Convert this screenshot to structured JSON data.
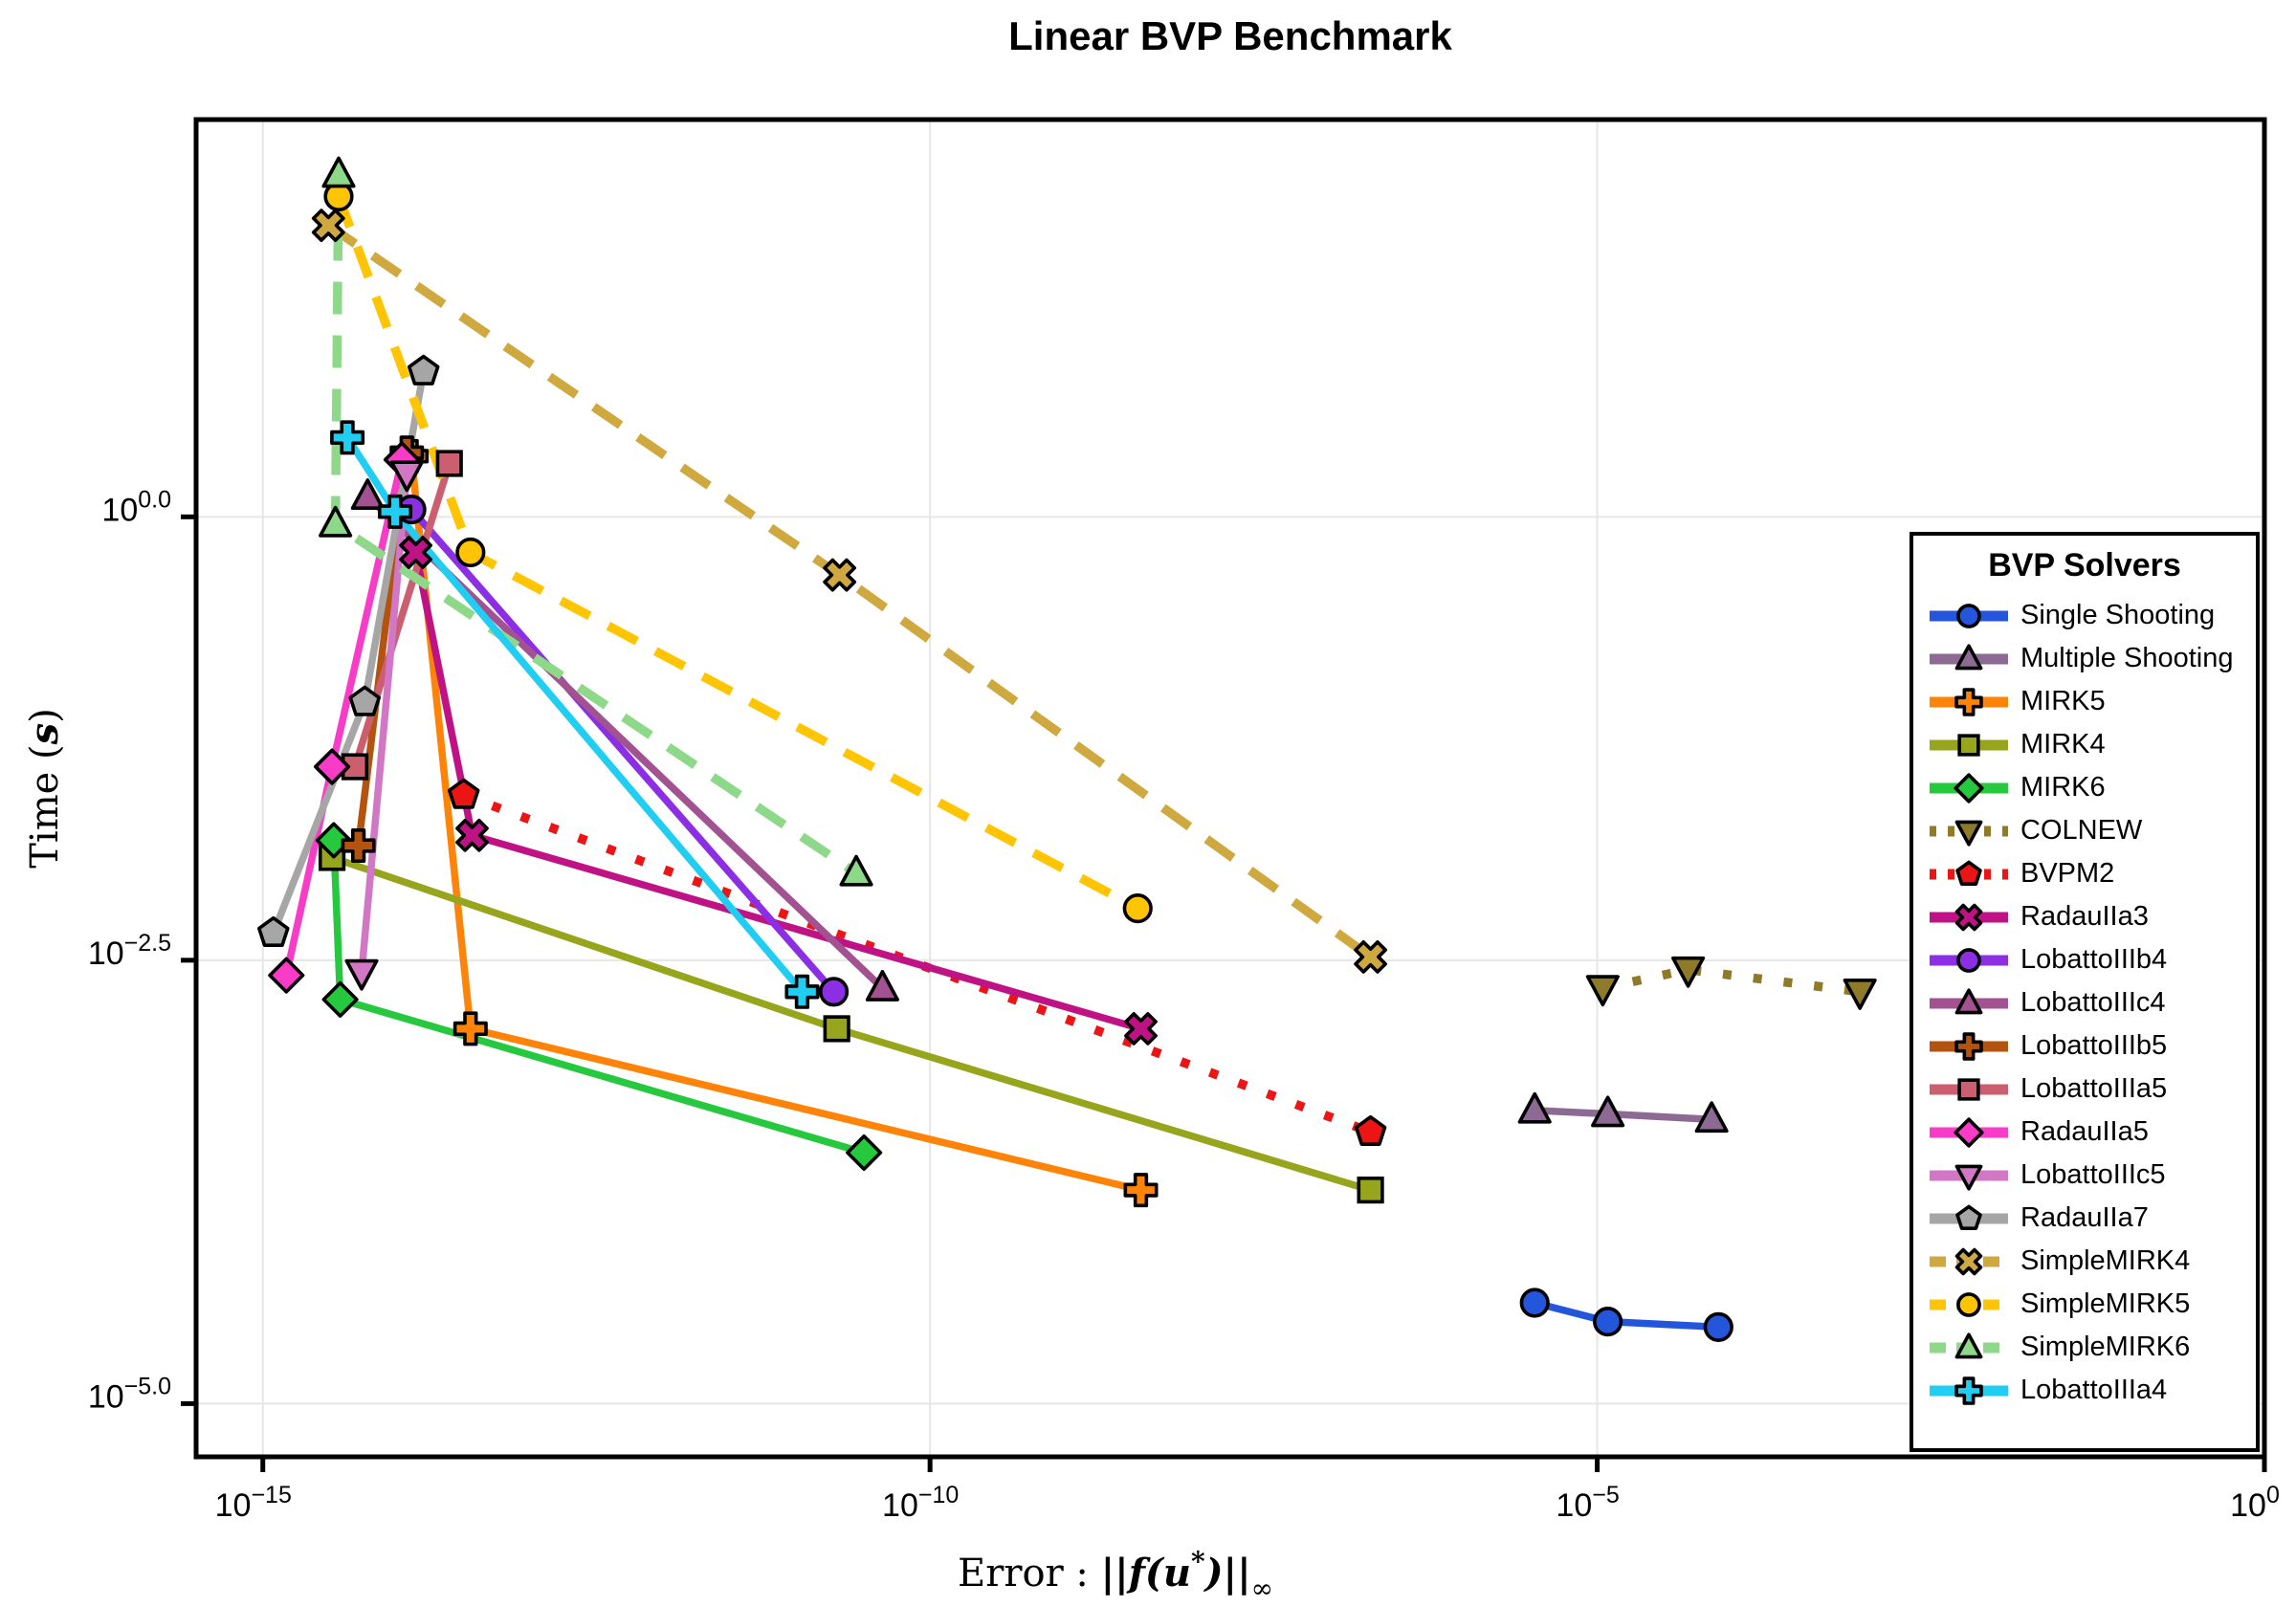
{
  "figure": {
    "title": "Linear BVP Benchmark"
  },
  "axes": {
    "xlabel": "Error :  ||f(u*)||∞",
    "xlabel_parts": {
      "prefix": "Error :  ",
      "body": "||f(u",
      "star": "*",
      "close": ")||",
      "inf": "∞"
    },
    "ylabel": "Time (s)",
    "ylabel_parts": {
      "prefix": "Time (",
      "s": "s",
      "close": ")"
    }
  },
  "legend": {
    "title": "BVP Solvers"
  },
  "chart_data": {
    "type": "line",
    "title": "Linear BVP Benchmark",
    "xlabel": "Error: ||f(u*)||_inf",
    "ylabel": "Time (s)",
    "xscale": "log10",
    "yscale": "log10",
    "x_range_exp": [
      -15.5,
      0
    ],
    "y_range_exp": [
      -5.3,
      2.24
    ],
    "grid": true,
    "legend_position": "right-inside",
    "x_ticks": [
      {
        "base": "10",
        "exp": "−15",
        "value": 1e-15
      },
      {
        "base": "10",
        "exp": "−10",
        "value": 1e-10
      },
      {
        "base": "10",
        "exp": "−5",
        "value": 1e-05
      },
      {
        "base": "10",
        "exp": "0",
        "value": 1
      }
    ],
    "y_ticks": [
      {
        "base": "10",
        "exp": "0.0",
        "value": 1
      },
      {
        "base": "10",
        "exp": "−2.5",
        "value": 0.0031622776601683794
      },
      {
        "base": "10",
        "exp": "−5.0",
        "value": 1e-05
      }
    ],
    "series": [
      {
        "name": "Single Shooting",
        "color": "#2456db",
        "marker": "circle",
        "line": "solid",
        "points": [
          [
            3.4e-06,
            3.7e-05
          ],
          [
            1.2e-05,
            2.9e-05
          ],
          [
            8.1e-05,
            2.7e-05
          ]
        ]
      },
      {
        "name": "Multiple Shooting",
        "color": "#8d6a93",
        "marker": "utriangle",
        "line": "solid",
        "points": [
          [
            3.4e-06,
            0.00045
          ],
          [
            1.2e-05,
            0.00043
          ],
          [
            7.2e-05,
            0.0004
          ]
        ]
      },
      {
        "name": "MIRK5",
        "color": "#fd8408",
        "marker": "cross",
        "line": "solid",
        "points": [
          [
            1.3e-14,
            2.2
          ],
          [
            3.6e-14,
            0.0013
          ],
          [
            3.8e-09,
            0.00016
          ]
        ]
      },
      {
        "name": "MIRK4",
        "color": "#97a51d",
        "marker": "rect",
        "line": "solid",
        "points": [
          [
            3.3e-15,
            0.012
          ],
          [
            2e-11,
            0.0013
          ],
          [
            2e-07,
            0.00016
          ]
        ]
      },
      {
        "name": "MIRK6",
        "color": "#26c93e",
        "marker": "diamond",
        "line": "solid",
        "points": [
          [
            3.4e-15,
            0.015
          ],
          [
            3.8e-15,
            0.0019
          ],
          [
            3.2e-11,
            0.00026
          ]
        ]
      },
      {
        "name": "COLNEW",
        "color": "#8f7a2a",
        "marker": "dtriangle",
        "line": "dotted",
        "points": [
          [
            1.1e-05,
            0.0022
          ],
          [
            4.8e-05,
            0.0028
          ],
          [
            0.00093,
            0.0021
          ]
        ]
      },
      {
        "name": "BVPM2",
        "color": "#ec1515",
        "marker": "pentagon",
        "line": "dotted",
        "points": [
          [
            3.2e-14,
            0.027
          ],
          [
            2e-07,
            0.00034
          ]
        ]
      },
      {
        "name": "RadauIIa3",
        "color": "#bf1385",
        "marker": "xcross",
        "line": "solid",
        "points": [
          [
            1.4e-14,
            0.63
          ],
          [
            3.7e-14,
            0.016
          ],
          [
            3.8e-09,
            0.0013
          ]
        ]
      },
      {
        "name": "LobattoIIIb4",
        "color": "#8c2fe4",
        "marker": "circle",
        "line": "solid",
        "points": [
          [
            1.3e-14,
            1.1
          ],
          [
            1.9e-11,
            0.0021
          ]
        ]
      },
      {
        "name": "LobattoIIIc4",
        "color": "#a25290",
        "marker": "utriangle",
        "line": "solid",
        "points": [
          [
            6.1e-15,
            1.3
          ],
          [
            4.4e-11,
            0.0022
          ]
        ]
      },
      {
        "name": "LobattoIIIb5",
        "color": "#b35310",
        "marker": "cross",
        "line": "solid",
        "points": [
          [
            1.2e-14,
            2.3
          ],
          [
            5.2e-15,
            0.014
          ]
        ]
      },
      {
        "name": "LobattoIIIa5",
        "color": "#cc5f6f",
        "marker": "rect",
        "line": "solid",
        "points": [
          [
            2.5e-14,
            2.0
          ],
          [
            4.9e-15,
            0.039
          ]
        ]
      },
      {
        "name": "RadauIIa5",
        "color": "#f83cc8",
        "marker": "diamond",
        "line": "solid",
        "points": [
          [
            1.1e-14,
            2.1
          ],
          [
            3.3e-15,
            0.039
          ],
          [
            1.5e-15,
            0.0026
          ]
        ]
      },
      {
        "name": "LobattoIIIc5",
        "color": "#d277c5",
        "marker": "dtriangle",
        "line": "solid",
        "points": [
          [
            1.2e-14,
            1.75
          ],
          [
            5.5e-15,
            0.0027
          ]
        ]
      },
      {
        "name": "RadauIIa7",
        "color": "#a6a6a6",
        "marker": "pentagon",
        "line": "solid",
        "points": [
          [
            1.6e-14,
            6.6
          ],
          [
            5.8e-15,
            0.09
          ],
          [
            1.2e-15,
            0.0045
          ]
        ]
      },
      {
        "name": "SimpleMIRK4",
        "color": "#cfa93f",
        "marker": "xcross",
        "line": "dashed",
        "points": [
          [
            3.1e-15,
            44
          ],
          [
            2.1e-11,
            0.47
          ],
          [
            2e-07,
            0.0033
          ]
        ]
      },
      {
        "name": "SimpleMIRK5",
        "color": "#ffc505",
        "marker": "circle",
        "line": "dashed",
        "points": [
          [
            3.7e-15,
            64
          ],
          [
            3.6e-14,
            0.63
          ],
          [
            3.6e-09,
            0.0062
          ]
        ]
      },
      {
        "name": "SimpleMIRK6",
        "color": "#8ed88a",
        "marker": "utriangle",
        "line": "dashed",
        "points": [
          [
            3.7e-15,
            85
          ],
          [
            3.5e-15,
            0.91
          ],
          [
            2.8e-11,
            0.0098
          ]
        ]
      },
      {
        "name": "LobattoIIIa4",
        "color": "#22cdf2",
        "marker": "cross",
        "line": "solid",
        "points": [
          [
            4.3e-15,
            2.8
          ],
          [
            9.8e-15,
            1.07
          ],
          [
            1.1e-11,
            0.0021
          ]
        ]
      }
    ]
  }
}
